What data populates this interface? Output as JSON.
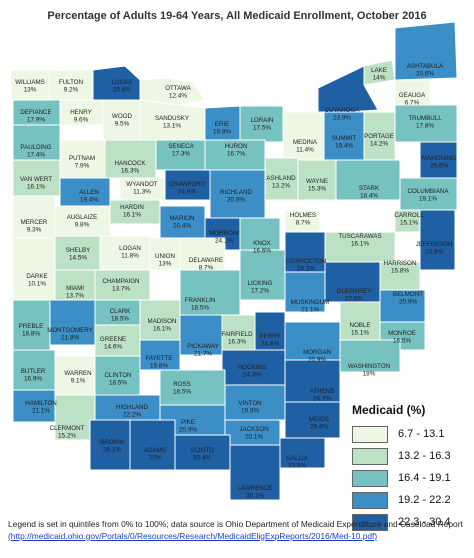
{
  "title": "Percentage of Adults 19-64 Years, All Medicaid Enrollment, October 2016",
  "legend": {
    "title": "Medicaid (%)",
    "items": [
      {
        "label": "6.7 - 13.1",
        "color": "#eef7e3"
      },
      {
        "label": "13.2 - 16.3",
        "color": "#bde1c5"
      },
      {
        "label": "16.4 - 19.1",
        "color": "#76c2c1"
      },
      {
        "label": "19.2 - 22.2",
        "color": "#3b8ec6"
      },
      {
        "label": "22.3 - 30.4",
        "color": "#1f5fa3"
      }
    ]
  },
  "footer": {
    "note": "Legend is set in quintiles from 0% to 100%; data source is Ohio Department of Medicaid Expenditure and Caseload Report",
    "link": "(http://medicaid.ohio.gov/Portals/0/Resources/Research/MedicaidEligExpReports/2016/Med-10.pdf)"
  },
  "counties": [
    {
      "name": "WILLIAMS",
      "value": "13%",
      "tier": 0
    },
    {
      "name": "FULTON",
      "value": "9.2%",
      "tier": 0
    },
    {
      "name": "LUCAS",
      "value": "25.8%",
      "tier": 4
    },
    {
      "name": "OTTAWA",
      "value": "12.4%",
      "tier": 0
    },
    {
      "name": "LAKE",
      "value": "14%",
      "tier": 1
    },
    {
      "name": "ASHTABULA",
      "value": "20.6%",
      "tier": 3
    },
    {
      "name": "GEAUGA",
      "value": "6.7%",
      "tier": 0
    },
    {
      "name": "CUYAHOGA",
      "value": "23.9%",
      "tier": 4
    },
    {
      "name": "DEFIANCE",
      "value": "17.9%",
      "tier": 2
    },
    {
      "name": "HENRY",
      "value": "9.6%",
      "tier": 0
    },
    {
      "name": "WOOD",
      "value": "9.5%",
      "tier": 0
    },
    {
      "name": "SANDUSKY",
      "value": "13.1%",
      "tier": 0
    },
    {
      "name": "ERIE",
      "value": "19.8%",
      "tier": 3
    },
    {
      "name": "LORAIN",
      "value": "17.5%",
      "tier": 2
    },
    {
      "name": "TRUMBULL",
      "value": "17.8%",
      "tier": 2
    },
    {
      "name": "PORTAGE",
      "value": "14.2%",
      "tier": 1
    },
    {
      "name": "SUMMIT",
      "value": "19.4%",
      "tier": 3
    },
    {
      "name": "MEDINA",
      "value": "11.4%",
      "tier": 0
    },
    {
      "name": "PAULDING",
      "value": "17.4%",
      "tier": 2
    },
    {
      "name": "PUTNAM",
      "value": "7.9%",
      "tier": 0
    },
    {
      "name": "HANCOCK",
      "value": "16.3%",
      "tier": 1
    },
    {
      "name": "SENECA",
      "value": "17.3%",
      "tier": 2
    },
    {
      "name": "HURON",
      "value": "16.7%",
      "tier": 2
    },
    {
      "name": "MAHONING",
      "value": "26.6%",
      "tier": 4
    },
    {
      "name": "VAN WERT",
      "value": "16.1%",
      "tier": 1
    },
    {
      "name": "WYANDOT",
      "value": "11.3%",
      "tier": 0
    },
    {
      "name": "CRAWFORD",
      "value": "24.8%",
      "tier": 4
    },
    {
      "name": "ASHLAND",
      "value": "13.2%",
      "tier": 1
    },
    {
      "name": "WAYNE",
      "value": "15.3%",
      "tier": 1
    },
    {
      "name": "STARK",
      "value": "18.4%",
      "tier": 2
    },
    {
      "name": "COLUMBIANA",
      "value": "19.1%",
      "tier": 2
    },
    {
      "name": "ALLEN",
      "value": "19.4%",
      "tier": 3
    },
    {
      "name": "HARDIN",
      "value": "16.1%",
      "tier": 1
    },
    {
      "name": "RICHLAND",
      "value": "20.8%",
      "tier": 3
    },
    {
      "name": "CARROLL",
      "value": "15.1%",
      "tier": 1
    },
    {
      "name": "HOLMES",
      "value": "8.7%",
      "tier": 0
    },
    {
      "name": "MERCER",
      "value": "9.3%",
      "tier": 0
    },
    {
      "name": "AUGLAIZE",
      "value": "9.8%",
      "tier": 0
    },
    {
      "name": "MARION",
      "value": "20.4%",
      "tier": 3
    },
    {
      "name": "MORROW",
      "value": "24.1%",
      "tier": 4
    },
    {
      "name": "KNOX",
      "value": "16.6%",
      "tier": 2
    },
    {
      "name": "TUSCARAWAS",
      "value": "16.1%",
      "tier": 1
    },
    {
      "name": "JEFFERSON",
      "value": "23.9%",
      "tier": 4
    },
    {
      "name": "SHELBY",
      "value": "14.5%",
      "tier": 1
    },
    {
      "name": "LOGAN",
      "value": "11.8%",
      "tier": 0
    },
    {
      "name": "UNION",
      "value": "13%",
      "tier": 0
    },
    {
      "name": "DELAWARE",
      "value": "8.7%",
      "tier": 0
    },
    {
      "name": "COSHOCTON",
      "value": "24.2%",
      "tier": 4
    },
    {
      "name": "HARRISON",
      "value": "15.8%",
      "tier": 1
    },
    {
      "name": "DARKE",
      "value": "10.1%",
      "tier": 0
    },
    {
      "name": "MIAMI",
      "value": "13.7%",
      "tier": 1
    },
    {
      "name": "CHAMPAIGN",
      "value": "13.7%",
      "tier": 1
    },
    {
      "name": "LICKING",
      "value": "17.2%",
      "tier": 2
    },
    {
      "name": "GUERNSEY",
      "value": "27.8%",
      "tier": 4
    },
    {
      "name": "BELMONT",
      "value": "20.9%",
      "tier": 3
    },
    {
      "name": "FRANKLIN",
      "value": "18.5%",
      "tier": 2
    },
    {
      "name": "MUSKINGUM",
      "value": "21.1%",
      "tier": 3
    },
    {
      "name": "CLARK",
      "value": "18.5%",
      "tier": 2
    },
    {
      "name": "MADISON",
      "value": "16.1%",
      "tier": 1
    },
    {
      "name": "PREBLE",
      "value": "18.8%",
      "tier": 2
    },
    {
      "name": "MONTGOMERY",
      "value": "21.8%",
      "tier": 3
    },
    {
      "name": "GREENE",
      "value": "14.6%",
      "tier": 1
    },
    {
      "name": "FAIRFIELD",
      "value": "16.3%",
      "tier": 1
    },
    {
      "name": "PERRY",
      "value": "24.6%",
      "tier": 4
    },
    {
      "name": "NOBLE",
      "value": "15.1%",
      "tier": 1
    },
    {
      "name": "MONROE",
      "value": "16.5%",
      "tier": 2
    },
    {
      "name": "PICKAWAY",
      "value": "21.7%",
      "tier": 3
    },
    {
      "name": "MORGAN",
      "value": "20.9%",
      "tier": 3
    },
    {
      "name": "FAYETTE",
      "value": "19.8%",
      "tier": 3
    },
    {
      "name": "WASHINGTON",
      "value": "18%",
      "tier": 2
    },
    {
      "name": "BUTLER",
      "value": "16.9%",
      "tier": 2
    },
    {
      "name": "WARREN",
      "value": "9.1%",
      "tier": 0
    },
    {
      "name": "CLINTON",
      "value": "18.5%",
      "tier": 2
    },
    {
      "name": "HOCKING",
      "value": "24.3%",
      "tier": 4
    },
    {
      "name": "ROSS",
      "value": "18.5%",
      "tier": 2
    },
    {
      "name": "ATHENS",
      "value": "24.7%",
      "tier": 4
    },
    {
      "name": "HAMILTON",
      "value": "21.1%",
      "tier": 3
    },
    {
      "name": "HIGHLAND",
      "value": "22.2%",
      "tier": 3
    },
    {
      "name": "VINTON",
      "value": "19.8%",
      "tier": 3
    },
    {
      "name": "MEIGS",
      "value": "26.4%",
      "tier": 4
    },
    {
      "name": "CLERMONT",
      "value": "15.2%",
      "tier": 1
    },
    {
      "name": "PIKE",
      "value": "20.9%",
      "tier": 3
    },
    {
      "name": "JACKSON",
      "value": "20.1%",
      "tier": 3
    },
    {
      "name": "BROWN",
      "value": "26.1%",
      "tier": 4
    },
    {
      "name": "ADAMS",
      "value": "27%",
      "tier": 4
    },
    {
      "name": "SCIOTO",
      "value": "30.4%",
      "tier": 4
    },
    {
      "name": "GALLIA",
      "value": "23.5%",
      "tier": 4
    },
    {
      "name": "LAWRENCE",
      "value": "30.1%",
      "tier": 4
    }
  ]
}
